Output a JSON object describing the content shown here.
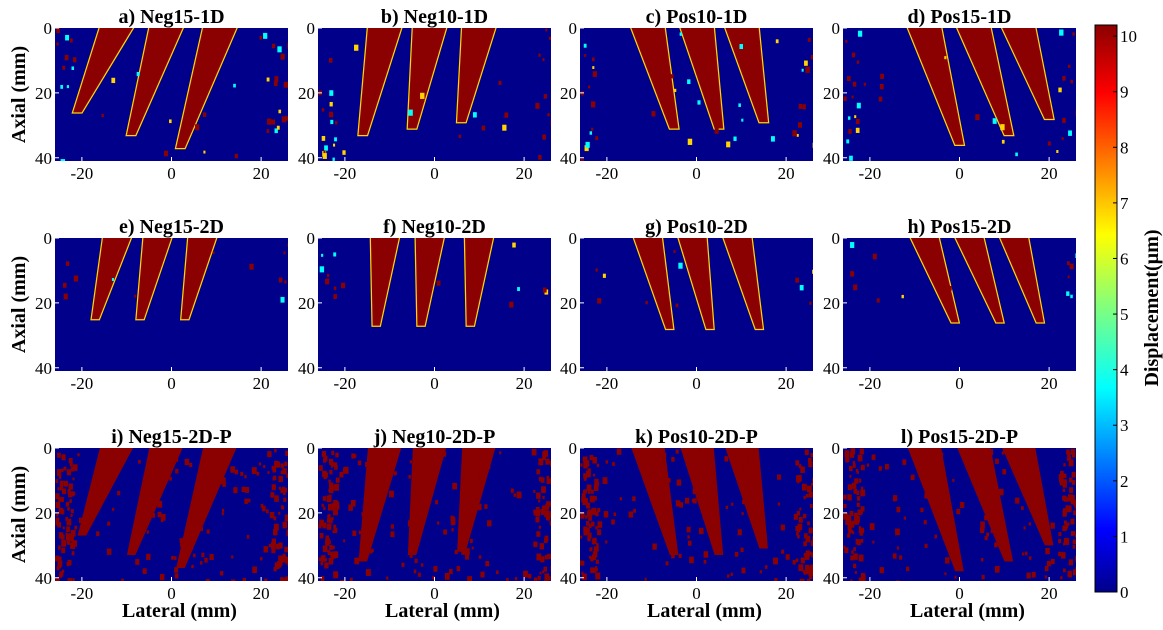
{
  "chart_data": {
    "type": "heatmap",
    "panel_titles": [
      "a) Neg15-1D",
      "b) Neg10-1D",
      "c) Pos10-1D",
      "d) Pos15-1D",
      "e) Neg15-2D",
      "f) Neg10-2D",
      "g) Pos10-2D",
      "h) Pos15-2D",
      "i) Neg15-2D-P",
      "j) Neg10-2D-P",
      "k) Pos10-2D-P",
      "l) Pos15-2D-P"
    ],
    "xlabel": "Lateral (mm)",
    "ylabel": "Axial (mm)",
    "x_ticks": [
      "-20",
      "0",
      "20"
    ],
    "x_tick_values": [
      -20,
      0,
      20
    ],
    "y_ticks": [
      "0",
      "20",
      "40"
    ],
    "y_tick_values": [
      0,
      20,
      40
    ],
    "xlim": [
      -26,
      26
    ],
    "ylim": [
      0,
      41
    ],
    "y_reversed": true,
    "colorbar": {
      "label": "Displacement(µm)",
      "ticks": [
        "0",
        "1",
        "2",
        "3",
        "4",
        "5",
        "6",
        "7",
        "8",
        "9",
        "10"
      ],
      "range": [
        0,
        10.2
      ],
      "colormap": "jet"
    },
    "colors": {
      "background": "#00008b",
      "high": "#8b0000",
      "mid_edge": "#ffd400",
      "cyan": "#00ffff"
    },
    "panels": [
      {
        "streaks": [
          {
            "x0": -12,
            "x1": -21,
            "len": 26
          },
          {
            "x0": -1,
            "x1": -9,
            "len": 33
          },
          {
            "x0": 11,
            "x1": 2,
            "len": 37
          }
        ]
      },
      {
        "streaks": [
          {
            "x0": -11,
            "x1": -16,
            "len": 33
          },
          {
            "x0": -1,
            "x1": -5,
            "len": 31
          },
          {
            "x0": 10,
            "x1": 6,
            "len": 29
          }
        ]
      },
      {
        "streaks": [
          {
            "x0": -11,
            "x1": -5,
            "len": 31
          },
          {
            "x0": 0,
            "x1": 5,
            "len": 31
          },
          {
            "x0": 10,
            "x1": 15,
            "len": 29
          }
        ]
      },
      {
        "streaks": [
          {
            "x0": -8,
            "x1": 0,
            "len": 36
          },
          {
            "x0": 3,
            "x1": 11,
            "len": 33
          },
          {
            "x0": 13,
            "x1": 20,
            "len": 28
          }
        ]
      },
      {
        "streaks": [
          {
            "x0": -12,
            "x1": -17,
            "len": 25
          },
          {
            "x0": -3,
            "x1": -7,
            "len": 25
          },
          {
            "x0": 7,
            "x1": 3,
            "len": 25
          }
        ]
      },
      {
        "streaks": [
          {
            "x0": -11,
            "x1": -13,
            "len": 27
          },
          {
            "x0": -1,
            "x1": -3,
            "len": 27
          },
          {
            "x0": 10,
            "x1": 8,
            "len": 27
          }
        ]
      },
      {
        "streaks": [
          {
            "x0": -11,
            "x1": -6,
            "len": 28
          },
          {
            "x0": -1,
            "x1": 3,
            "len": 28
          },
          {
            "x0": 9,
            "x1": 14,
            "len": 28
          }
        ]
      },
      {
        "streaks": [
          {
            "x0": -8,
            "x1": -1,
            "len": 26
          },
          {
            "x0": 2,
            "x1": 9,
            "len": 26
          },
          {
            "x0": 12,
            "x1": 18,
            "len": 26
          }
        ]
      },
      {
        "streaks": [
          {
            "x0": -12,
            "x1": -20,
            "len": 27
          },
          {
            "x0": -1,
            "x1": -9,
            "len": 33
          },
          {
            "x0": 11,
            "x1": 2,
            "len": 37
          }
        ]
      },
      {
        "streaks": [
          {
            "x0": -11,
            "x1": -16,
            "len": 35
          },
          {
            "x0": -1,
            "x1": -5,
            "len": 33
          },
          {
            "x0": 10,
            "x1": 6,
            "len": 32
          }
        ]
      },
      {
        "streaks": [
          {
            "x0": -11,
            "x1": -5,
            "len": 33
          },
          {
            "x0": 0,
            "x1": 5,
            "len": 33
          },
          {
            "x0": 10,
            "x1": 15,
            "len": 31
          }
        ]
      },
      {
        "streaks": [
          {
            "x0": -8,
            "x1": 0,
            "len": 38
          },
          {
            "x0": 3,
            "x1": 11,
            "len": 35
          },
          {
            "x0": 13,
            "x1": 20,
            "len": 30
          }
        ]
      }
    ]
  }
}
